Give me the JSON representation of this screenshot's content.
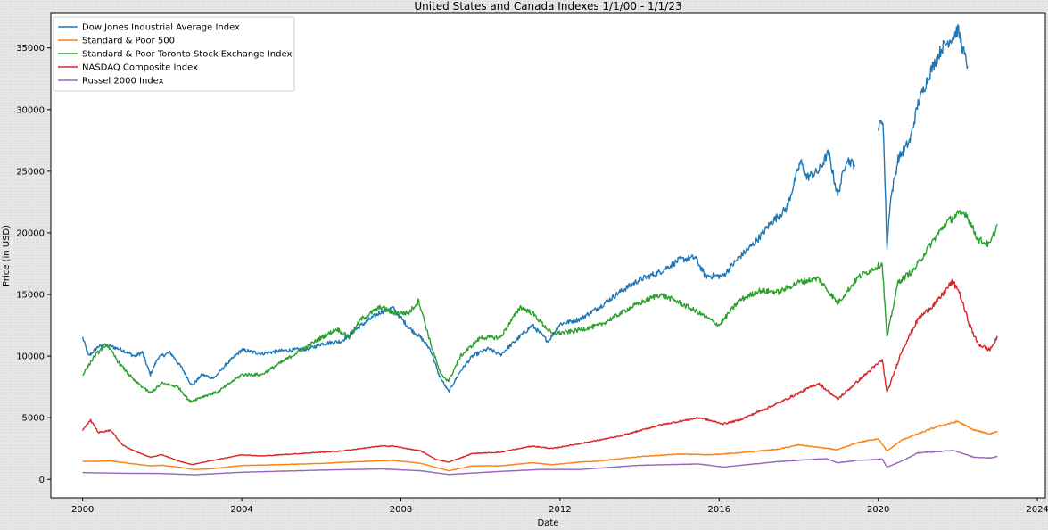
{
  "chart_data": {
    "type": "line",
    "title": "United States and Canada Indexes 1/1/00 - 1/1/23",
    "xlabel": "Date",
    "ylabel": "Price (in USD)",
    "xlim": [
      1999.2,
      2024.2
    ],
    "ylim": [
      -1500,
      37800
    ],
    "xticks": [
      2000,
      2004,
      2008,
      2012,
      2016,
      2020,
      2024
    ],
    "yticks": [
      0,
      5000,
      10000,
      15000,
      20000,
      25000,
      30000,
      35000
    ],
    "grid": false,
    "legend_position": "upper-left",
    "series": [
      {
        "name": "Dow Jones Industrial Average Index",
        "color": "#1f77b4",
        "segments": [
          {
            "x": [
              2000.0,
              2000.15,
              2000.4,
              2000.7,
              2001.0,
              2001.3,
              2001.5,
              2001.7,
              2001.9,
              2002.2,
              2002.5,
              2002.75,
              2003.0,
              2003.3,
              2003.6,
              2004.0,
              2004.5,
              2004.9,
              2005.3,
              2005.7,
              2006.0,
              2006.5,
              2007.0,
              2007.5,
              2007.8,
              2008.2,
              2008.5,
              2008.75,
              2008.95,
              2009.2,
              2009.5,
              2009.8,
              2010.2,
              2010.5,
              2011.0,
              2011.3,
              2011.7,
              2012.0,
              2012.5,
              2013.0,
              2013.5,
              2014.0,
              2014.5,
              2015.0,
              2015.4,
              2015.65,
              2016.1,
              2016.5,
              2016.9,
              2017.3,
              2017.7,
              2018.05,
              2018.2,
              2018.5,
              2018.75,
              2018.98,
              2019.2,
              2019.4
            ],
            "y": [
              11500,
              10000,
              10800,
              10800,
              10500,
              10000,
              10300,
              8500,
              9900,
              10300,
              9000,
              7600,
              8500,
              8200,
              9300,
              10500,
              10200,
              10400,
              10500,
              10600,
              11000,
              11200,
              12500,
              13600,
              13900,
              12300,
              11500,
              10500,
              8500,
              7100,
              8800,
              10000,
              10600,
              10100,
              11600,
              12500,
              11200,
              12600,
              13000,
              14000,
              15200,
              16200,
              16800,
              17800,
              18000,
              16500,
              16500,
              18000,
              19200,
              20800,
              22000,
              25800,
              24500,
              25000,
              26500,
              23000,
              26000,
              25500
            ]
          },
          {
            "x": [
              2020.0,
              2020.12,
              2020.22,
              2020.3,
              2020.5,
              2020.8,
              2021.0,
              2021.3,
              2021.6,
              2021.9,
              2022.0,
              2022.2,
              2022.25
            ],
            "y": [
              28500,
              29200,
              18800,
              22500,
              26000,
              27500,
              30500,
              33000,
              35000,
              36000,
              36500,
              34000,
              33500
            ]
          }
        ]
      },
      {
        "name": "Standard & Poor 500",
        "color": "#ff7f0e",
        "segments": [
          {
            "x": [
              2000.0,
              2000.7,
              2001.3,
              2001.7,
              2002.0,
              2002.5,
              2002.8,
              2003.2,
              2004.0,
              2005.0,
              2006.0,
              2007.0,
              2007.8,
              2008.5,
              2009.2,
              2009.8,
              2010.5,
              2011.3,
              2011.8,
              2012.5,
              2013.0,
              2014.0,
              2015.0,
              2015.8,
              2016.5,
              2017.5,
              2018.0,
              2018.98,
              2019.5,
              2020.0,
              2020.22,
              2020.6,
              2021.0,
              2021.5,
              2022.0,
              2022.4,
              2022.8,
              2023.0
            ],
            "y": [
              1450,
              1500,
              1250,
              1100,
              1150,
              950,
              800,
              850,
              1130,
              1200,
              1300,
              1450,
              1550,
              1300,
              700,
              1100,
              1100,
              1350,
              1200,
              1400,
              1500,
              1850,
              2050,
              2000,
              2150,
              2450,
              2800,
              2400,
              3000,
              3300,
              2300,
              3200,
              3700,
              4300,
              4700,
              4000,
              3700,
              3900
            ]
          }
        ]
      },
      {
        "name": "Standard & Poor Toronto Stock Exchange Index",
        "color": "#2ca02c",
        "segments": [
          {
            "x": [
              2000.0,
              2000.3,
              2000.6,
              2000.9,
              2001.3,
              2001.7,
              2002.0,
              2002.4,
              2002.7,
              2003.0,
              2003.4,
              2004.0,
              2004.5,
              2005.0,
              2005.5,
              2006.0,
              2006.4,
              2006.7,
              2007.0,
              2007.5,
              2007.8,
              2008.2,
              2008.45,
              2008.75,
              2009.0,
              2009.2,
              2009.5,
              2010.0,
              2010.5,
              2011.0,
              2011.3,
              2011.8,
              2012.3,
              2013.0,
              2013.8,
              2014.5,
              2014.9,
              2015.5,
              2016.0,
              2016.5,
              2017.0,
              2017.5,
              2018.0,
              2018.5,
              2018.98,
              2019.5,
              2020.1,
              2020.22,
              2020.5,
              2020.9,
              2021.3,
              2021.7,
              2022.0,
              2022.2,
              2022.5,
              2022.8,
              2023.0
            ],
            "y": [
              8500,
              10000,
              11000,
              9500,
              8000,
              7000,
              7800,
              7500,
              6300,
              6700,
              7100,
              8500,
              8500,
              9500,
              10500,
              11500,
              12200,
              11500,
              13000,
              14000,
              13500,
              13500,
              14500,
              11000,
              8500,
              8000,
              10000,
              11500,
              11500,
              14000,
              13500,
              11800,
              12000,
              12500,
              14000,
              15000,
              14500,
              13500,
              12500,
              14500,
              15300,
              15200,
              16000,
              16300,
              14300,
              16400,
              17500,
              11500,
              16000,
              17000,
              19000,
              20800,
              21500,
              21600,
              19500,
              19000,
              20700
            ]
          }
        ]
      },
      {
        "name": "NASDAQ Composite Index",
        "color": "#d62728",
        "segments": [
          {
            "x": [
              2000.0,
              2000.2,
              2000.4,
              2000.7,
              2001.0,
              2001.3,
              2001.7,
              2002.0,
              2002.4,
              2002.75,
              2003.2,
              2004.0,
              2004.5,
              2005.5,
              2006.5,
              2007.5,
              2007.8,
              2008.5,
              2008.9,
              2009.2,
              2009.8,
              2010.5,
              2011.3,
              2011.8,
              2012.5,
              2013.5,
              2014.5,
              2015.5,
              2016.1,
              2016.5,
              2017.5,
              2018.5,
              2018.98,
              2019.5,
              2020.1,
              2020.22,
              2020.6,
              2021.0,
              2021.5,
              2021.85,
              2022.0,
              2022.3,
              2022.5,
              2022.8,
              2023.0
            ],
            "y": [
              4000,
              4800,
              3800,
              4000,
              2800,
              2300,
              1800,
              2000,
              1500,
              1200,
              1500,
              2000,
              1900,
              2100,
              2300,
              2700,
              2700,
              2300,
              1600,
              1400,
              2100,
              2200,
              2700,
              2500,
              2900,
              3500,
              4400,
              5000,
              4500,
              4800,
              6200,
              7800,
              6500,
              8000,
              9700,
              7000,
              10500,
              13000,
              14500,
              16000,
              15500,
              12500,
              11000,
              10500,
              11500
            ]
          }
        ]
      },
      {
        "name": "Russel 2000 Index",
        "color": "#9467bd",
        "segments": [
          {
            "x": [
              2000.0,
              2001.0,
              2002.0,
              2002.8,
              2004.0,
              2006.0,
              2007.5,
              2008.5,
              2009.2,
              2010.5,
              2011.5,
              2012.5,
              2014.0,
              2015.5,
              2016.1,
              2017.5,
              2018.7,
              2018.98,
              2019.5,
              2020.1,
              2020.22,
              2020.6,
              2021.0,
              2021.5,
              2021.9,
              2022.4,
              2022.8,
              2023.0
            ],
            "y": [
              550,
              500,
              480,
              380,
              580,
              750,
              850,
              700,
              400,
              650,
              800,
              800,
              1150,
              1250,
              1000,
              1450,
              1700,
              1350,
              1550,
              1650,
              1000,
              1500,
              2150,
              2250,
              2350,
              1800,
              1750,
              1850
            ]
          }
        ]
      }
    ]
  }
}
